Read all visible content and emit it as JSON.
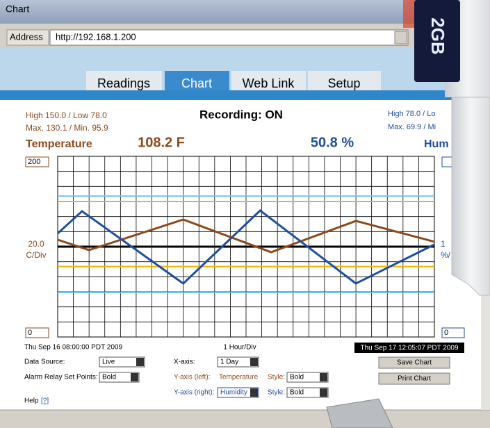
{
  "window": {
    "title": "Chart",
    "address_label": "Address",
    "address": "http://192.168.1.200"
  },
  "tabs": [
    "Readings",
    "Chart",
    "Web Link",
    "Setup"
  ],
  "header": {
    "left_high_low": "High 150.0 / Low 78.0",
    "left_max_min": "Max. 130.1 / Min. 95.9",
    "status": "Recording: ON",
    "right_high_low": "High 78.0 / Lo",
    "right_max_min": "Max. 69.9 / Mi",
    "left_name": "Temperature",
    "left_reading": "108.2 F",
    "right_reading": "50.8 %",
    "right_name": "Hum"
  },
  "chart_data": {
    "type": "line",
    "x_start": "Thu Sep 16 08:00:00 PDT 2009",
    "x_scale": "1 Hour/Div",
    "x_end": "Thu Sep 17 12:05:07 PDT 2009",
    "y_scale_value": "20.0",
    "y_scale_unit": "C/Div",
    "y2_scale_value": "1",
    "y2_scale_unit": "%/",
    "xlim": [
      0,
      24
    ],
    "xticks": [
      0,
      1,
      2,
      3,
      4,
      5,
      6,
      7,
      8,
      9,
      10,
      11,
      12,
      13,
      14,
      15,
      16,
      17,
      18,
      19,
      20,
      21,
      22,
      23,
      24
    ],
    "ylim": [
      0,
      200
    ],
    "yticks": [
      0,
      200
    ],
    "y2lim": [
      0,
      100
    ],
    "y2ticks": [
      0
    ],
    "series": [
      {
        "color": "#8b4a1e",
        "x": [
          0,
          2,
          8,
          13.6,
          19,
          24
        ],
        "values": [
          107.7,
          96.2,
          130,
          93.8,
          128.5,
          105.4
        ]
      },
      {
        "color": "#1f4e9c",
        "axis": "y2",
        "x": [
          0,
          1.55,
          8,
          12.9,
          19,
          24
        ],
        "values": [
          57.3,
          69.6,
          29.6,
          70,
          29.6,
          51.2
        ]
      }
    ],
    "reference_lines": [
      {
        "value": 150,
        "color": "#f0b400"
      },
      {
        "value": 78,
        "color": "#f0b400"
      },
      {
        "value": 100,
        "color": "#000000"
      },
      {
        "value": 78,
        "axis": "y2",
        "color": "#6ec6f0"
      },
      {
        "value": 24.6,
        "axis": "y2",
        "color": "#6ec6f0"
      }
    ]
  },
  "controls": {
    "data_source_label": "Data Source:",
    "data_source": "Live",
    "x_axis_label": "X-axis:",
    "x_axis": "1 Day",
    "alarm_label": "Alarm Relay Set Points:",
    "alarm": "Bold",
    "y_left_label": "Y-axis (left):",
    "y_left": "Temperature",
    "y_left_style_label": "Style:",
    "y_left_style": "Bold",
    "y_right_label": "Y-axis (right):",
    "y_right": "Humidity",
    "y_right_style_label": "Style:",
    "y_right_style": "Bold",
    "save": "Save Chart",
    "print": "Print Chart",
    "help": "Help",
    "help_link": "[?]"
  },
  "device_label": "2GB"
}
